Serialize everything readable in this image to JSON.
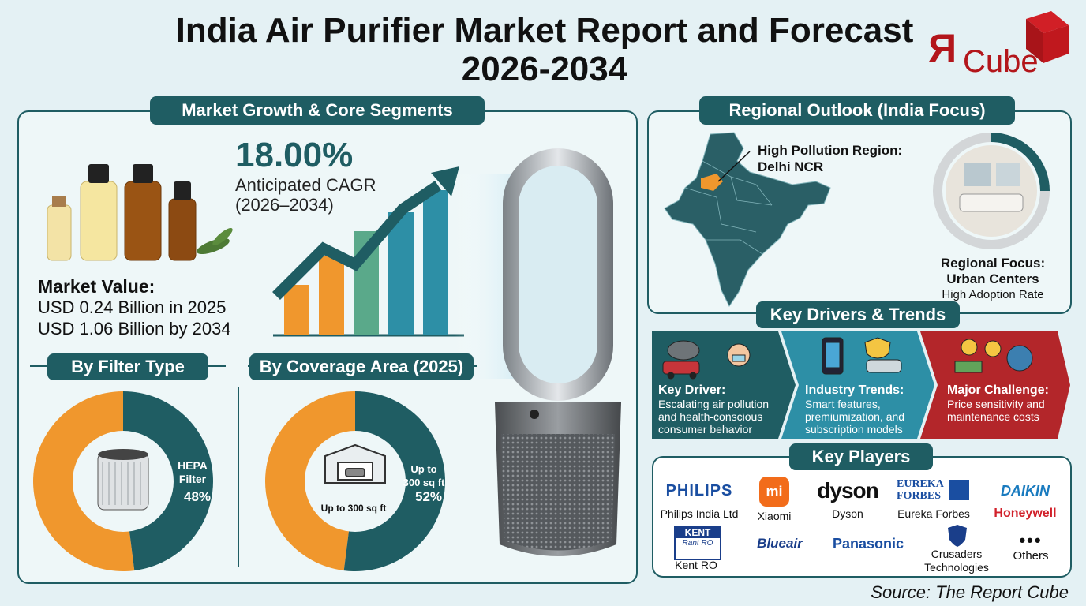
{
  "title": "India Air Purifier Market Report and Forecast 2026-2034",
  "logo": {
    "r": "R",
    "text": "Cube"
  },
  "market_panel": {
    "heading": "Market Growth & Core Segments",
    "cagr_value": "18.00%",
    "cagr_label_1": "Anticipated CAGR",
    "cagr_label_2": "(2026–2034)",
    "market_value_title": "Market Value:",
    "market_value_2025": "USD 0.24 Billion in 2025",
    "market_value_2034": "USD 1.06 Billion by 2034",
    "bars_growth": [
      0.32,
      0.5,
      0.66,
      0.78,
      0.92
    ]
  },
  "filter_type": {
    "heading": "By Filter Type",
    "segment_label_1": "HEPA",
    "segment_label_2": "Filter",
    "segment_pct": "48%",
    "share": 0.48
  },
  "coverage": {
    "heading": "By Coverage Area (2025)",
    "small_label": "Up to 300 sq ft",
    "segment_label_1": "Up to",
    "segment_label_2": "300 sq ft",
    "segment_pct": "52%",
    "share": 0.52
  },
  "regional": {
    "heading": "Regional Outlook (India Focus)",
    "pollution_label_1": "High Pollution Region:",
    "pollution_label_2": "Delhi NCR",
    "focus_1": "Regional Focus:",
    "focus_2": "Urban Centers",
    "focus_3": "High Adoption Rate"
  },
  "drivers": {
    "heading": "Key Drivers & Trends",
    "items": [
      {
        "title": "Key Driver:",
        "text_1": "Escalating air pollution",
        "text_2": "and health-conscious",
        "text_3": "consumer behavior"
      },
      {
        "title": "Industry Trends:",
        "text_1": "Smart features,",
        "text_2": "premiumization, and",
        "text_3": "subscription models"
      },
      {
        "title": "Major Challenge:",
        "text_1": "Price sensitivity and",
        "text_2": "maintenance costs",
        "text_3": ""
      }
    ]
  },
  "players": {
    "heading": "Key Players",
    "row1": [
      {
        "brand": "PHILIPS",
        "name": "Philips India Ltd"
      },
      {
        "brand": "mi",
        "name": "Xiaomi"
      },
      {
        "brand": "dyson",
        "name": "Dyson"
      },
      {
        "brand": "EUREKA FORBES",
        "name": "Eureka Forbes"
      },
      {
        "brand": "DAIKIN",
        "name": "Honeywell"
      }
    ],
    "row2": [
      {
        "brand": "KENT",
        "sub": "Rant RO",
        "name": "Kent RO"
      },
      {
        "brand": "Blueair",
        "name": ""
      },
      {
        "brand": "Panasonic",
        "name": ""
      },
      {
        "brand": "",
        "name": "Crusaders Technologies"
      },
      {
        "brand": "•••",
        "name": "Others"
      }
    ]
  },
  "source": "Source: The Report Cube",
  "colors": {
    "teal": "#1f5d63",
    "orange": "#f0972d",
    "red": "#b3161b",
    "bg": "#e4f1f4"
  }
}
